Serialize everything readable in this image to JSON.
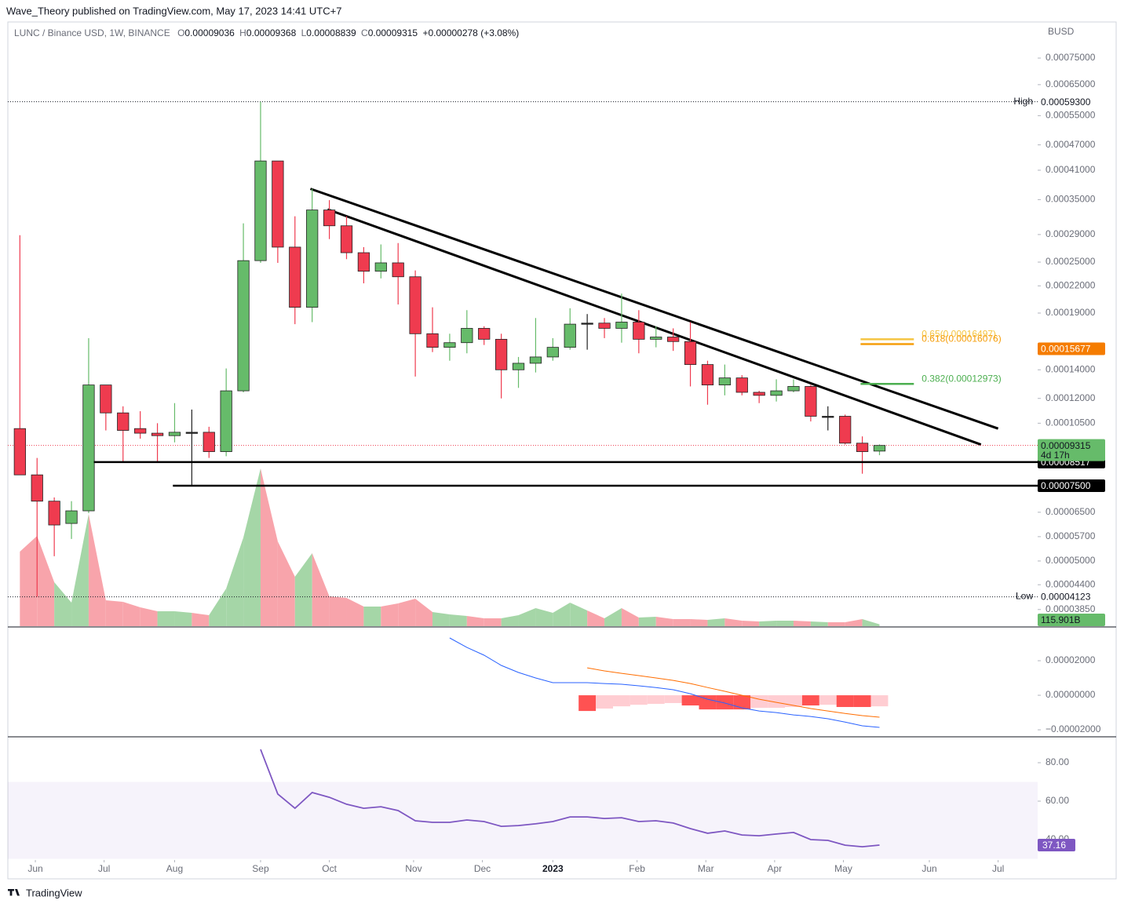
{
  "byline": "Wave_Theory published on TradingView.com, May 17, 2023 14:41 UTC+7",
  "footer": "TradingView",
  "chart_data": [
    {
      "type": "candlestick",
      "title": "LUNC / Binance USD, 1W, BINANCE",
      "legend_letters": [
        "O",
        "H",
        "L",
        "C"
      ],
      "change": "+0.00000278 (+3.08%)",
      "unit": "BUSD",
      "yscale": "log",
      "grid": false,
      "up_color": "#66bb6a",
      "down_color": "#ef3b4f",
      "doji_color": "#222222",
      "x": [
        0,
        1,
        2,
        3,
        4,
        5,
        6,
        7,
        8,
        9,
        10,
        11,
        12,
        13,
        14,
        15,
        16,
        17,
        18,
        19,
        20,
        21,
        22,
        23,
        24,
        25,
        26,
        27,
        28,
        29,
        30,
        31,
        32,
        33,
        34,
        35,
        36,
        37,
        38,
        39,
        40,
        41,
        42,
        43,
        44,
        45,
        46,
        47,
        48,
        49,
        50
      ],
      "open": [
        0.000102,
        7.95e-05,
        6.9e-05,
        6.12e-05,
        6.55e-05,
        0.000129,
        0.000111,
        0.000102,
        9.95e-05,
        9.82e-05,
        0.0001,
        0.0001,
        9.01e-05,
        0.000125,
        0.000252,
        0.000431,
        0.000271,
        0.000196,
        0.000331,
        0.000304,
        0.000263,
        0.000238,
        0.000249,
        0.000231,
        0.00017,
        0.000158,
        0.000162,
        0.000175,
        0.000165,
        0.00014,
        0.000145,
        0.00015,
        0.000158,
        0.00018,
        0.00018,
        0.000175,
        0.000181,
        0.000165,
        0.000167,
        0.000163,
        0.000144,
        0.000129,
        0.000134,
        0.000124,
        0.000122,
        0.000125,
        0.000128,
        0.000109,
        0.000109,
        9.43e-05,
        9.036e-05
      ],
      "high": [
        0.000289,
        8.71e-05,
        7.04e-05,
        6.9e-05,
        0.000166,
        0.000129,
        0.000115,
        0.000112,
        0.000105,
        0.000117,
        0.000113,
        0.000103,
        0.000141,
        0.000308,
        0.000593,
        0.000431,
        0.00032,
        0.000371,
        0.000349,
        0.00032,
        0.000271,
        0.000275,
        0.000277,
        0.000239,
        0.000196,
        0.00017,
        0.000193,
        0.000177,
        0.00017,
        0.00015,
        0.000185,
        0.000166,
        0.000195,
        0.000189,
        0.000185,
        0.000211,
        0.000193,
        0.000177,
        0.000175,
        0.000181,
        0.000147,
        0.000144,
        0.000136,
        0.000125,
        0.000133,
        0.000133,
        0.000129,
        0.000115,
        0.00011,
        9.78e-05,
        9.368e-05
      ],
      "low": [
        7.95e-05,
        4.123e-05,
        5.13e-05,
        5.63e-05,
        6.47e-05,
        0.000101,
        8.55e-05,
        9.66e-05,
        8.55e-05,
        9.47e-05,
        7.53e-05,
        8.71e-05,
        8.79e-05,
        0.000124,
        0.000249,
        0.000249,
        0.000179,
        0.000181,
        0.000283,
        0.000254,
        0.000223,
        0.000229,
        0.000199,
        0.000135,
        0.000154,
        0.000147,
        0.000153,
        0.00016,
        0.00012,
        0.000127,
        0.000138,
        0.000147,
        0.000156,
        0.000156,
        0.000166,
        0.000162,
        0.000153,
        0.000158,
        0.000155,
        0.000128,
        0.000116,
        0.000122,
        0.000122,
        0.000117,
        0.000118,
        0.000124,
        0.000106,
        0.000101,
        9.36e-05,
        8e-05,
        8.839e-05
      ],
      "close": [
        7.95e-05,
        6.9e-05,
        6.07e-05,
        6.55e-05,
        0.000129,
        0.000111,
        0.000101,
        9.95e-05,
        9.82e-05,
        0.0001,
        0.0001,
        9.01e-05,
        0.000125,
        0.000252,
        0.000431,
        0.000271,
        0.000196,
        0.000331,
        0.000304,
        0.000263,
        0.000238,
        0.000249,
        0.000231,
        0.00017,
        0.000158,
        0.000162,
        0.000175,
        0.000165,
        0.00014,
        0.000145,
        0.00015,
        0.000158,
        0.000179,
        0.00018,
        0.000175,
        0.000181,
        0.000165,
        0.000167,
        0.000163,
        0.000144,
        0.000129,
        0.000134,
        0.000124,
        0.000122,
        0.000125,
        0.000128,
        0.000109,
        0.000109,
        9.43e-05,
        9.01e-05,
        9.315e-05
      ],
      "countdown": "4d 17h",
      "xlim": [
        -0.7,
        59.2
      ],
      "xticks": [
        {
          "value": 0.9,
          "label": "Jun"
        },
        {
          "value": 4.9,
          "label": "Jul"
        },
        {
          "value": 9,
          "label": "Aug"
        },
        {
          "value": 14,
          "label": "Sep"
        },
        {
          "value": 18,
          "label": "Oct"
        },
        {
          "value": 22.9,
          "label": "Nov"
        },
        {
          "value": 26.9,
          "label": "Dec"
        },
        {
          "value": 31,
          "label": "2023"
        },
        {
          "value": 35.9,
          "label": "Feb"
        },
        {
          "value": 39.9,
          "label": "Mar"
        },
        {
          "value": 43.9,
          "label": "Apr"
        },
        {
          "value": 47.9,
          "label": "May"
        },
        {
          "value": 52.9,
          "label": "Jun"
        },
        {
          "value": 56.9,
          "label": "Jul"
        }
      ],
      "ylim": [
        3.52e-05,
        0.000911
      ],
      "yticks": [
        {
          "value": 0.00075,
          "label": "0.00075000"
        },
        {
          "value": 0.00065,
          "label": "0.00065000"
        },
        {
          "value": 0.00055,
          "label": "0.00055000"
        },
        {
          "value": 0.00047,
          "label": "0.00047000"
        },
        {
          "value": 0.00041,
          "label": "0.00041000"
        },
        {
          "value": 0.00035,
          "label": "0.00035000"
        },
        {
          "value": 0.00029,
          "label": "0.00029000"
        },
        {
          "value": 0.00025,
          "label": "0.00025000"
        },
        {
          "value": 0.00022,
          "label": "0.00022000"
        },
        {
          "value": 0.00019,
          "label": "0.00019000"
        },
        {
          "value": 0.00014,
          "label": "0.00014000"
        },
        {
          "value": 0.00012,
          "label": "0.00012000"
        },
        {
          "value": 0.000105,
          "label": "0.00010500"
        },
        {
          "value": 6.5e-05,
          "label": "0.00006500"
        },
        {
          "value": 5.7e-05,
          "label": "0.00005700"
        },
        {
          "value": 5e-05,
          "label": "0.00005000"
        },
        {
          "value": 4.4e-05,
          "label": "0.00004400"
        },
        {
          "value": 3.85e-05,
          "label": "0.00003850"
        }
      ],
      "extremes": [
        {
          "name": "High",
          "value": 0.000593,
          "label": "0.00059300"
        },
        {
          "name": "Low",
          "value": 4.123e-05,
          "label": "0.00004123"
        }
      ],
      "hlines": [
        {
          "value": 8.517e-05,
          "label": "0.00008517",
          "x_start": 4.3
        },
        {
          "value": 7.5e-05,
          "label": "0.00007500",
          "x_start": 8.9
        }
      ],
      "trendlines": [
        {
          "x": [
            16.9,
            56.9
          ],
          "y": [
            0.000371,
            0.000102
          ]
        },
        {
          "x": [
            17.9,
            55.9
          ],
          "y": [
            0.000332,
            9.36e-05
          ]
        }
      ],
      "fib": {
        "x_range": [
          48.9,
          52
        ],
        "levels": [
          {
            "value": 0.00016497,
            "label": "0.65(0.00016497)",
            "color": "#f5c542"
          },
          {
            "value": 0.00016076,
            "label": "0.618(0.00016076)",
            "color": "#f59e0b"
          },
          {
            "value": 0.00012973,
            "label": "0.382(0.00012973)",
            "color": "#4caf50"
          }
        ]
      },
      "price_tags": [
        {
          "value": 0.00015677,
          "label": "0.00015677",
          "color": "#f57c00"
        }
      ]
    },
    {
      "type": "volume",
      "ylim": [
        0,
        10400
      ],
      "values": [
        4750,
        5750,
        2800,
        1500,
        7150,
        1650,
        1550,
        1200,
        950,
        950,
        850,
        700,
        2400,
        5650,
        10050,
        5400,
        3150,
        4650,
        1900,
        1800,
        1250,
        1250,
        1450,
        1750,
        900,
        750,
        650,
        500,
        500,
        700,
        1150,
        850,
        1500,
        1000,
        500,
        1150,
        550,
        600,
        450,
        450,
        400,
        500,
        350,
        300,
        350,
        350,
        300,
        250,
        250,
        450,
        115.901
      ],
      "last_value_label": "115.901B",
      "up_color": "#a5d6a7",
      "down_color": "#f8a4ab"
    },
    {
      "type": "macd",
      "ylim": [
        -2.36e-05,
        3.91e-05
      ],
      "yticks": [
        {
          "value": 2e-05,
          "label": "0.00002000"
        },
        {
          "value": 0,
          "label": "0.00000000"
        },
        {
          "value": -2e-05,
          "label": "−0.00002000"
        }
      ],
      "histogram": {
        "values": [
          null,
          null,
          null,
          null,
          null,
          null,
          null,
          null,
          null,
          null,
          null,
          null,
          null,
          null,
          null,
          null,
          null,
          null,
          null,
          null,
          null,
          null,
          null,
          null,
          null,
          null,
          null,
          null,
          null,
          null,
          null,
          null,
          null,
          -9.1e-06,
          -7.7e-06,
          -6.4e-06,
          -5.5e-06,
          -5e-06,
          -4.5e-06,
          -5.9e-06,
          -8.2e-06,
          -8.2e-06,
          -8.2e-06,
          -7.3e-06,
          -7.3e-06,
          -6.8e-06,
          -5.9e-06,
          -5.5e-06,
          -6.8e-06,
          -6.8e-06,
          -6.4e-06
        ],
        "colors": [
          null,
          null,
          null,
          null,
          null,
          null,
          null,
          null,
          null,
          null,
          null,
          null,
          null,
          null,
          null,
          null,
          null,
          null,
          null,
          null,
          null,
          null,
          null,
          null,
          null,
          null,
          null,
          null,
          null,
          null,
          null,
          null,
          null,
          "#ff5252",
          "#ffcdd2",
          "#ffcdd2",
          "#ffcdd2",
          "#ffcdd2",
          "#ffcdd2",
          "#ff5252",
          "#ff5252",
          "#ff5252",
          "#ff5252",
          "#ffcdd2",
          "#ffcdd2",
          "#ffcdd2",
          "#ff5252",
          "#ffcdd2",
          "#ff5252",
          "#ff5252",
          "#ffcdd2"
        ]
      },
      "series": [
        {
          "color": "#2962ff",
          "values": [
            null,
            null,
            null,
            null,
            null,
            null,
            null,
            null,
            null,
            null,
            null,
            null,
            null,
            null,
            null,
            null,
            null,
            null,
            null,
            null,
            null,
            null,
            null,
            null,
            null,
            3.32e-05,
            2.77e-05,
            2.32e-05,
            1.73e-05,
            1.32e-05,
            1e-05,
            7.3e-06,
            7.3e-06,
            7.3e-06,
            6.8e-06,
            6.4e-06,
            5.5e-06,
            4.5e-06,
            3.2e-06,
            9e-07,
            -2.3e-06,
            -4.5e-06,
            -7.3e-06,
            -9.1e-06,
            -1e-05,
            -1.14e-05,
            -1.23e-05,
            -1.36e-05,
            -1.55e-05,
            -1.77e-05,
            -1.86e-05
          ]
        },
        {
          "color": "#ff6d00",
          "values": [
            null,
            null,
            null,
            null,
            null,
            null,
            null,
            null,
            null,
            null,
            null,
            null,
            null,
            null,
            null,
            null,
            null,
            null,
            null,
            null,
            null,
            null,
            null,
            null,
            null,
            null,
            null,
            null,
            null,
            null,
            null,
            null,
            null,
            1.59e-05,
            1.41e-05,
            1.27e-05,
            1.14e-05,
            1e-05,
            8.6e-06,
            6.8e-06,
            4.5e-06,
            2.3e-06,
            0,
            -2.3e-06,
            -4.1e-06,
            -5.9e-06,
            -7.7e-06,
            -9.1e-06,
            -1.05e-05,
            -1.18e-05,
            -1.27e-05
          ]
        }
      ]
    },
    {
      "type": "rsi",
      "ylim": [
        29.8,
        93.06
      ],
      "band": [
        30,
        70
      ],
      "color": "#7e57c2",
      "yticks": [
        {
          "value": 80,
          "label": "80.00"
        },
        {
          "value": 60,
          "label": "60.00"
        },
        {
          "value": 40,
          "label": "40.00"
        }
      ],
      "values": [
        null,
        null,
        null,
        null,
        null,
        null,
        null,
        null,
        null,
        null,
        null,
        null,
        null,
        null,
        86.9,
        63.7,
        56.3,
        64.5,
        62,
        58.4,
        56.3,
        57.1,
        55.1,
        49.8,
        49,
        49,
        50.2,
        49.4,
        46.9,
        47.3,
        48.2,
        49.4,
        51.8,
        51.8,
        51,
        51.4,
        49.4,
        49.8,
        48.6,
        45.7,
        43.3,
        44.5,
        42.4,
        42,
        42.9,
        43.7,
        40,
        39.6,
        37.1,
        36.3,
        37.16
      ]
    }
  ]
}
